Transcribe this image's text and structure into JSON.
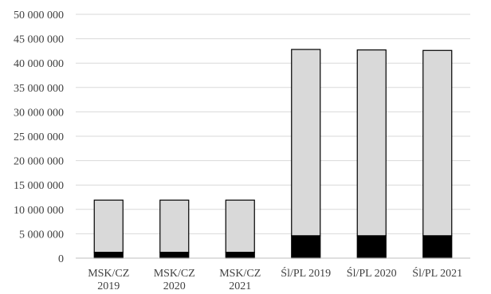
{
  "chart_data": {
    "type": "bar",
    "stacked": true,
    "categories": [
      [
        "MSK/CZ",
        "2019"
      ],
      [
        "MSK/CZ",
        "2020"
      ],
      [
        "MSK/CZ",
        "2021"
      ],
      [
        "Śl/PL 2019"
      ],
      [
        "Śl/PL 2020"
      ],
      [
        "Śl/PL 2021"
      ]
    ],
    "series": [
      {
        "values": [
          1200000,
          1200000,
          1200000,
          4600000,
          4600000,
          4600000
        ],
        "color": "#000000"
      },
      {
        "values": [
          10700000,
          10700000,
          10700000,
          38200000,
          38100000,
          38000000
        ],
        "color": "#d9d9d9"
      }
    ],
    "y_ticks": [
      "0",
      "5 000 000",
      "10 000 000",
      "15 000 000",
      "20 000 000",
      "25 000 000",
      "30 000 000",
      "35 000 000",
      "40 000 000",
      "45 000 000",
      "50 000 000"
    ],
    "ylim": [
      0,
      50000000
    ],
    "grid": true,
    "legend": "none",
    "title": "",
    "xlabel": "",
    "ylabel": ""
  }
}
